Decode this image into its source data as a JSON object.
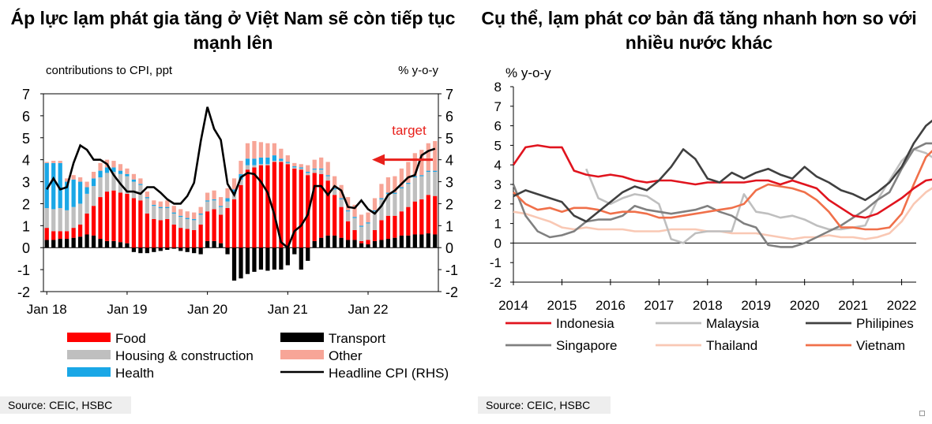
{
  "left_title": "Áp lực lạm phát gia tăng ở Việt Nam sẽ còn tiếp tục mạnh lên",
  "left_source": "Source: CEIC, HSBC",
  "right_title": "Cụ thể, lạm phát cơ bản đã tăng nhanh hơn so với nhiều nước khác",
  "right_source": "Source: CEIC, HSBC",
  "colors": {
    "food": "#ff0000",
    "housing": "#bfbfbf",
    "health": "#1aa7e6",
    "transport": "#000000",
    "other": "#f7a597",
    "headline": "#000000",
    "arrow": "#e8201b",
    "indonesia": "#e0141e",
    "malaysia": "#bfbfbf",
    "philipines": "#404040",
    "singapore": "#808080",
    "thailand": "#f9c8b4",
    "vietnam": "#f0704a"
  },
  "chart_data": [
    {
      "type": "bar",
      "title": "Áp lực lạm phát gia tăng ở Việt Nam sẽ còn tiếp tục mạnh lên",
      "left_axis_label": "contributions  to CPI, ppt",
      "right_axis_label": "% y-o-y",
      "ylim": [
        -2,
        7
      ],
      "yticks": [
        "7",
        "6",
        "5",
        "4",
        "3",
        "2",
        "1",
        "0",
        "-1",
        "-2"
      ],
      "ytick_values": [
        7,
        6,
        5,
        4,
        3,
        2,
        1,
        0,
        -1,
        -2
      ],
      "x_tick_labels": [
        "Jan 18",
        "Jan 19",
        "Jan 20",
        "Jan 21",
        "Jan 22"
      ],
      "x_tick_indices": [
        0,
        12,
        24,
        36,
        48
      ],
      "annotation": "target",
      "target_value": 4,
      "legend": {
        "food": "Food",
        "housing": "Housing & construction",
        "health": "Health",
        "transport": "Transport",
        "other": "Other",
        "headline": "Headline CPI (RHS)"
      },
      "months": 59,
      "series": {
        "food": [
          0.55,
          0.4,
          0.35,
          0.35,
          0.45,
          0.55,
          0.95,
          1.35,
          1.9,
          2.25,
          2.3,
          2.25,
          2.25,
          2.25,
          2.15,
          1.55,
          1.3,
          1.25,
          1.3,
          1.05,
          0.9,
          0.85,
          0.8,
          1.05,
          1.35,
          1.45,
          1.3,
          1.8,
          2.2,
          2.85,
          3.55,
          3.65,
          3.75,
          3.75,
          3.9,
          3.9,
          3.8,
          3.6,
          3.55,
          3.3,
          3.1,
          2.9,
          2.5,
          1.85,
          1.4,
          0.85,
          0.45,
          0.1,
          0.2,
          0.5,
          0.9,
          1.05,
          1.0,
          1.1,
          1.3,
          1.5,
          1.6,
          1.75,
          1.75
        ],
        "housing": [
          0.9,
          1.0,
          1.05,
          0.95,
          0.95,
          0.95,
          0.9,
          0.9,
          0.9,
          0.85,
          0.85,
          0.85,
          0.8,
          0.75,
          0.7,
          0.7,
          0.6,
          0.55,
          0.5,
          0.5,
          0.5,
          0.45,
          0.45,
          0.45,
          0.45,
          0.4,
          0.35,
          0.3,
          0.25,
          0.25,
          0.2,
          0.1,
          0.05,
          0.05,
          0.05,
          0.05,
          0.05,
          0.05,
          0.05,
          0.1,
          0.15,
          0.2,
          0.2,
          0.25,
          0.35,
          0.45,
          0.55,
          0.65,
          0.75,
          0.85,
          0.95,
          1.0,
          1.0,
          1.05,
          1.05,
          1.1,
          1.05,
          1.05,
          1.1
        ],
        "health": [
          2.05,
          2.1,
          2.05,
          1.3,
          1.25,
          1.0,
          0.3,
          0.35,
          0.3,
          0.25,
          0.2,
          0.15,
          0.1,
          0.1,
          0.05,
          0.05,
          0.05,
          0.05,
          0.05,
          0.05,
          0.05,
          0.05,
          0.05,
          0.05,
          0.05,
          0.05,
          0.05,
          0.15,
          0.2,
          0.25,
          0.3,
          0.3,
          0.3,
          0.3,
          0.25,
          0.1,
          0.05,
          0.05,
          0.05,
          0.05,
          0.05,
          0.05,
          0.05,
          0.05,
          0.05,
          0.05,
          0.05,
          0.05,
          0.05,
          0.05,
          0.05,
          0.05,
          0.05,
          0.05,
          0.05,
          0.05,
          0.05,
          0.05,
          0.05
        ],
        "other": [
          0.05,
          0.1,
          0.1,
          0.15,
          0.2,
          0.2,
          0.25,
          0.3,
          0.35,
          0.35,
          0.3,
          0.3,
          0.25,
          0.25,
          0.25,
          0.25,
          0.2,
          0.25,
          0.3,
          0.3,
          0.3,
          0.3,
          0.3,
          0.3,
          0.35,
          0.4,
          0.4,
          0.45,
          0.5,
          0.6,
          0.7,
          0.8,
          0.7,
          0.65,
          0.55,
          0.45,
          0.3,
          0.15,
          0.15,
          0.3,
          0.4,
          0.5,
          0.6,
          0.55,
          0.6,
          0.6,
          0.55,
          0.5,
          0.45,
          0.55,
          0.65,
          0.7,
          0.75,
          0.85,
          0.95,
          1.05,
          1.15,
          1.25,
          1.35
        ],
        "transport": [
          0.35,
          0.35,
          0.4,
          0.4,
          0.45,
          0.5,
          0.6,
          0.55,
          0.4,
          0.3,
          0.3,
          0.25,
          0.2,
          -0.2,
          -0.25,
          -0.25,
          -0.2,
          -0.15,
          -0.1,
          -0.05,
          -0.15,
          -0.2,
          -0.25,
          -0.3,
          0.3,
          0.3,
          0.2,
          -0.3,
          -1.5,
          -1.4,
          -1.2,
          -1.1,
          -1.0,
          -1.05,
          -1.0,
          -1.0,
          -0.8,
          -0.3,
          -1.0,
          -0.6,
          0.3,
          0.45,
          0.55,
          0.55,
          0.45,
          0.35,
          0.35,
          0.2,
          0.15,
          0.3,
          0.35,
          0.4,
          0.45,
          0.55,
          0.55,
          0.6,
          0.6,
          0.65,
          0.6
        ],
        "headline": [
          2.65,
          3.15,
          2.65,
          2.75,
          3.85,
          4.65,
          4.45,
          4.0,
          4.0,
          3.8,
          3.3,
          2.9,
          2.55,
          2.55,
          2.45,
          2.75,
          2.75,
          2.5,
          2.2,
          2.0,
          2.0,
          2.35,
          2.95,
          4.85,
          6.4,
          5.4,
          4.9,
          2.9,
          2.4,
          3.2,
          3.4,
          3.35,
          3.0,
          2.5,
          1.5,
          0.25,
          0.0,
          0.75,
          1.0,
          1.5,
          2.8,
          2.8,
          2.4,
          2.8,
          2.6,
          1.85,
          1.8,
          2.15,
          1.75,
          1.55,
          1.9,
          2.4,
          2.6,
          2.9,
          3.2,
          3.3,
          4.2,
          4.4,
          4.5
        ]
      }
    },
    {
      "type": "line",
      "title": "Cụ thể, lạm phát cơ bản đã tăng nhanh hơn so với nhiều nước khác",
      "ylabel": "% y-o-y",
      "ylim": [
        -2,
        8
      ],
      "yticks": [
        "8",
        "7",
        "6",
        "5",
        "4",
        "3",
        "2",
        "1",
        "0",
        "-1",
        "-2"
      ],
      "ytick_values": [
        8,
        7,
        6,
        5,
        4,
        3,
        2,
        1,
        0,
        -1,
        -2
      ],
      "x_tick_labels": [
        "2014",
        "2015",
        "2016",
        "2017",
        "2018",
        "2019",
        "2020",
        "2021",
        "2022"
      ],
      "x_start": 2014.0,
      "x_end": 2022.3,
      "step_years": 0.25,
      "legend": {
        "indonesia": "Indonesia",
        "malaysia": "Malaysia",
        "philipines": "Philipines",
        "singapore": "Singapore",
        "thailand": "Thailand",
        "vietnam": "Vietnam"
      },
      "series": {
        "indonesia": [
          4.0,
          4.9,
          5.0,
          4.9,
          4.9,
          3.7,
          3.5,
          3.4,
          3.5,
          3.4,
          3.2,
          3.1,
          3.2,
          3.2,
          3.1,
          3.0,
          3.1,
          3.1,
          3.1,
          3.1,
          3.2,
          3.2,
          3.0,
          3.2,
          3.0,
          2.8,
          2.2,
          1.8,
          1.4,
          1.3,
          1.5,
          1.9,
          2.3,
          2.8,
          3.2,
          3.3
        ],
        "malaysia": [
          null,
          null,
          null,
          null,
          null,
          null,
          3.8,
          2.3,
          2.0,
          2.3,
          2.5,
          2.4,
          2.0,
          0.2,
          0.0,
          0.5,
          0.6,
          0.6,
          0.6,
          2.5,
          1.6,
          1.5,
          1.3,
          1.4,
          1.2,
          0.9,
          0.7,
          0.7,
          0.8,
          0.9,
          2.2,
          3.2,
          4.2,
          4.8,
          4.6,
          4.2
        ],
        "philipines": [
          2.4,
          2.7,
          2.5,
          2.3,
          2.1,
          1.4,
          1.1,
          1.6,
          2.1,
          2.6,
          2.9,
          2.7,
          3.2,
          3.9,
          4.8,
          4.3,
          3.3,
          3.1,
          3.6,
          3.3,
          3.6,
          3.8,
          3.5,
          3.3,
          3.9,
          3.4,
          3.1,
          2.7,
          2.5,
          2.2,
          2.6,
          3.1,
          3.9,
          5.1,
          6.0,
          6.5
        ],
        "singapore": [
          3.0,
          1.4,
          0.6,
          0.3,
          0.4,
          0.6,
          1.1,
          1.2,
          1.2,
          1.4,
          1.9,
          1.7,
          1.6,
          1.5,
          1.6,
          1.7,
          1.9,
          1.6,
          1.4,
          1.0,
          0.8,
          -0.1,
          -0.2,
          -0.2,
          0.0,
          0.3,
          0.6,
          0.9,
          1.3,
          1.7,
          2.2,
          2.6,
          3.8,
          4.8,
          5.1,
          5.1
        ],
        "thailand": [
          1.6,
          1.5,
          1.3,
          1.1,
          0.8,
          0.7,
          0.8,
          0.7,
          0.7,
          0.7,
          0.6,
          0.6,
          0.6,
          0.7,
          0.7,
          0.7,
          0.6,
          0.6,
          0.5,
          0.5,
          0.5,
          0.4,
          0.3,
          0.2,
          0.3,
          0.3,
          0.4,
          0.3,
          0.3,
          0.2,
          0.3,
          0.5,
          1.1,
          2.0,
          2.6,
          3.0
        ],
        "vietnam": [
          2.6,
          2.0,
          1.7,
          1.8,
          1.6,
          1.8,
          1.8,
          1.7,
          1.5,
          1.6,
          1.6,
          1.5,
          1.3,
          1.3,
          1.4,
          1.5,
          1.6,
          1.7,
          1.8,
          2.0,
          2.7,
          3.0,
          2.9,
          2.8,
          2.6,
          2.2,
          1.6,
          0.8,
          0.8,
          0.7,
          0.7,
          0.8,
          1.5,
          3.0,
          4.4,
          5.0
        ]
      }
    }
  ]
}
